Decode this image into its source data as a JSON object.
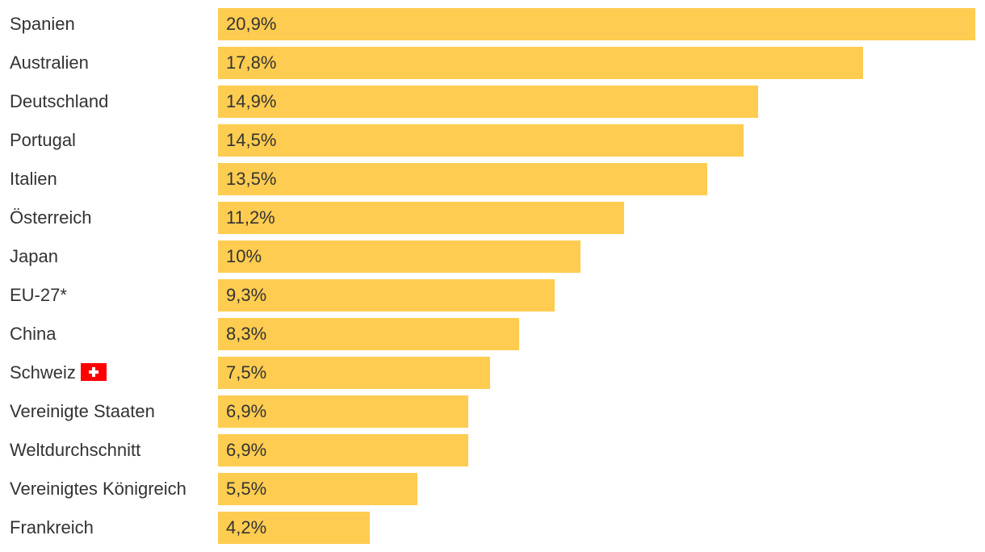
{
  "chart_data": {
    "type": "bar",
    "orientation": "horizontal",
    "categories": [
      "Spanien",
      "Australien",
      "Deutschland",
      "Portugal",
      "Italien",
      "Österreich",
      "Japan",
      "EU-27*",
      "China",
      "Schweiz",
      "Vereinigte Staaten",
      "Weltdurchschnitt",
      "Vereinigtes Königreich",
      "Frankreich"
    ],
    "values": [
      20.9,
      17.8,
      14.9,
      14.5,
      13.5,
      11.2,
      10,
      9.3,
      8.3,
      7.5,
      6.9,
      6.9,
      5.5,
      4.2
    ],
    "value_labels": [
      "20,9%",
      "17,8%",
      "14,9%",
      "14,5%",
      "13,5%",
      "11,2%",
      "10%",
      "9,3%",
      "8,3%",
      "7,5%",
      "6,9%",
      "6,9%",
      "5,5%",
      "4,2%"
    ],
    "flags": {
      "Schweiz": "swiss-flag-icon"
    },
    "xlim": [
      0,
      20.9
    ],
    "grid": false,
    "legend": false
  },
  "colors": {
    "bar": "#fecc50",
    "text": "#333333",
    "flag": "#ff0000",
    "flag_cross": "#ffffff"
  }
}
